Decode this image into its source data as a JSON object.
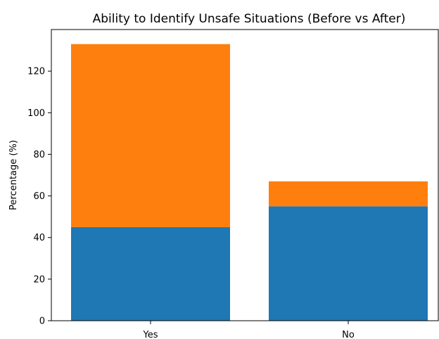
{
  "chart_data": {
    "type": "bar",
    "stacked": true,
    "title": "Ability to Identify Unsafe Situations (Before vs After)",
    "xlabel": "",
    "ylabel": "Percentage (%)",
    "categories": [
      "Yes",
      "No"
    ],
    "series": [
      {
        "values": [
          45,
          55
        ],
        "color": "#1f77b4"
      },
      {
        "values": [
          88,
          12
        ],
        "color": "#ff7f0e"
      }
    ],
    "ylim": [
      0,
      140
    ],
    "yticks": [
      0,
      20,
      40,
      60,
      80,
      100,
      120
    ],
    "grid": false,
    "legend": "none"
  }
}
